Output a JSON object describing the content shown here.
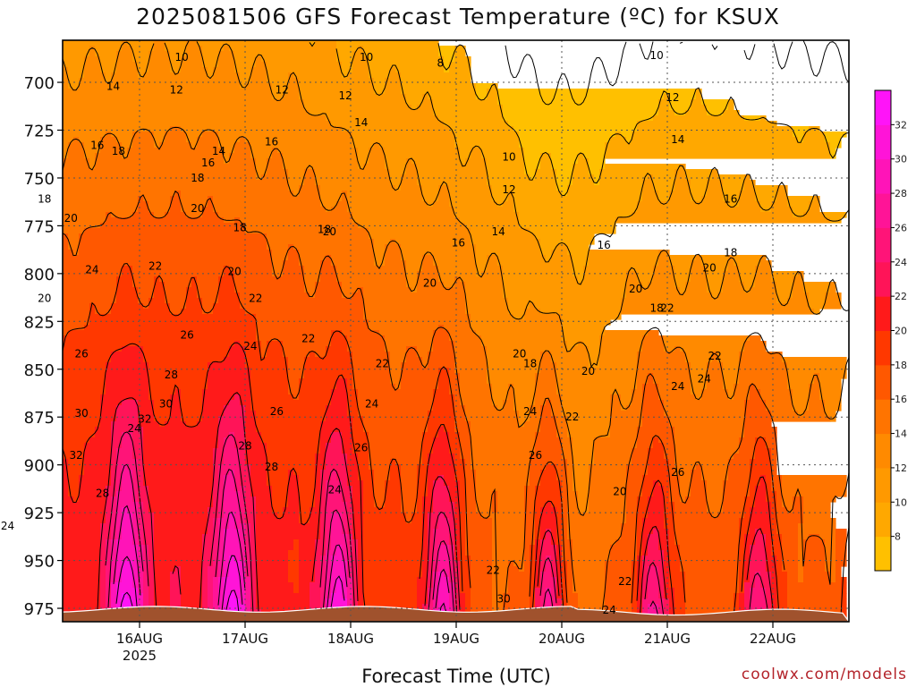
{
  "chart_data": {
    "type": "heatmap",
    "title": "2025081506 GFS Forecast Temperature (ºC) for KSUX",
    "xlabel": "Forecast Time (UTC)",
    "ylabel": "",
    "x_ticks": [
      "16AUG",
      "17AUG",
      "18AUG",
      "19AUG",
      "20AUG",
      "21AUG",
      "22AUG"
    ],
    "x_tick_sub": "2025",
    "y_ticks": [
      700,
      725,
      750,
      775,
      800,
      825,
      850,
      875,
      900,
      925,
      950,
      975
    ],
    "ylim": [
      982,
      678
    ],
    "colorbar": {
      "levels": [
        6,
        8,
        10,
        12,
        14,
        16,
        18,
        20,
        22,
        24,
        26,
        28,
        30,
        32,
        34
      ],
      "tick_labels": [
        8,
        10,
        12,
        14,
        16,
        18,
        20,
        22,
        24,
        26,
        28,
        30,
        32
      ],
      "colors": [
        "#ffc000",
        "#ffa800",
        "#ff9900",
        "#ff8a00",
        "#ff7400",
        "#ff5800",
        "#ff3800",
        "#ff1a1a",
        "#ff1458",
        "#ff1478",
        "#ff1497",
        "#ff14b8",
        "#ff14d8",
        "#ff14f8"
      ]
    },
    "contour_labels": [
      {
        "t": "10",
        "x": 16.4,
        "y": 687
      },
      {
        "t": "10",
        "x": 18.15,
        "y": 687
      },
      {
        "t": "8",
        "x": 18.85,
        "y": 690
      },
      {
        "t": "10",
        "x": 20.9,
        "y": 686
      },
      {
        "t": "14",
        "x": 15.75,
        "y": 702
      },
      {
        "t": "12",
        "x": 16.35,
        "y": 704
      },
      {
        "t": "12",
        "x": 17.35,
        "y": 704
      },
      {
        "t": "12",
        "x": 17.95,
        "y": 707
      },
      {
        "t": "12",
        "x": 21.05,
        "y": 708
      },
      {
        "t": "14",
        "x": 18.1,
        "y": 721
      },
      {
        "t": "16",
        "x": 15.6,
        "y": 733
      },
      {
        "t": "18",
        "x": 15.8,
        "y": 736
      },
      {
        "t": "14",
        "x": 16.75,
        "y": 736
      },
      {
        "t": "16",
        "x": 16.65,
        "y": 742
      },
      {
        "t": "16",
        "x": 17.25,
        "y": 731
      },
      {
        "t": "14",
        "x": 21.1,
        "y": 730
      },
      {
        "t": "10",
        "x": 19.5,
        "y": 739
      },
      {
        "t": "18",
        "x": 16.55,
        "y": 750
      },
      {
        "t": "12",
        "x": 19.5,
        "y": 756
      },
      {
        "t": "18",
        "x": 15.1,
        "y": 761
      },
      {
        "t": "16",
        "x": 21.6,
        "y": 761
      },
      {
        "t": "20",
        "x": 15.35,
        "y": 771
      },
      {
        "t": "20",
        "x": 16.55,
        "y": 766
      },
      {
        "t": "18",
        "x": 16.95,
        "y": 776
      },
      {
        "t": "20",
        "x": 17.8,
        "y": 778
      },
      {
        "t": "18",
        "x": 17.75,
        "y": 777
      },
      {
        "t": "14",
        "x": 19.4,
        "y": 778
      },
      {
        "t": "16",
        "x": 19.02,
        "y": 784
      },
      {
        "t": "16",
        "x": 20.4,
        "y": 785
      },
      {
        "t": "18",
        "x": 21.6,
        "y": 789
      },
      {
        "t": "24",
        "x": 15.55,
        "y": 798
      },
      {
        "t": "22",
        "x": 16.15,
        "y": 796
      },
      {
        "t": "20",
        "x": 16.9,
        "y": 799
      },
      {
        "t": "20",
        "x": 21.4,
        "y": 797
      },
      {
        "t": "20",
        "x": 18.75,
        "y": 805
      },
      {
        "t": "20",
        "x": 20.7,
        "y": 808
      },
      {
        "t": "20",
        "x": 15.1,
        "y": 813
      },
      {
        "t": "22",
        "x": 17.1,
        "y": 813
      },
      {
        "t": "18",
        "x": 20.9,
        "y": 818
      },
      {
        "t": "22",
        "x": 21.0,
        "y": 818
      },
      {
        "t": "26",
        "x": 16.45,
        "y": 832
      },
      {
        "t": "24",
        "x": 17.05,
        "y": 838
      },
      {
        "t": "22",
        "x": 17.6,
        "y": 834
      },
      {
        "t": "26",
        "x": 15.45,
        "y": 842
      },
      {
        "t": "20",
        "x": 19.6,
        "y": 842
      },
      {
        "t": "18",
        "x": 19.7,
        "y": 847
      },
      {
        "t": "22",
        "x": 18.3,
        "y": 847
      },
      {
        "t": "20",
        "x": 20.25,
        "y": 851
      },
      {
        "t": "22",
        "x": 21.45,
        "y": 843
      },
      {
        "t": "28",
        "x": 16.3,
        "y": 853
      },
      {
        "t": "24",
        "x": 21.35,
        "y": 855
      },
      {
        "t": "24",
        "x": 21.1,
        "y": 859
      },
      {
        "t": "30",
        "x": 16.25,
        "y": 868
      },
      {
        "t": "24",
        "x": 18.2,
        "y": 868
      },
      {
        "t": "26",
        "x": 17.3,
        "y": 872
      },
      {
        "t": "30",
        "x": 15.45,
        "y": 873
      },
      {
        "t": "24",
        "x": 19.7,
        "y": 872
      },
      {
        "t": "22",
        "x": 20.1,
        "y": 875
      },
      {
        "t": "32",
        "x": 16.05,
        "y": 876
      },
      {
        "t": "24",
        "x": 15.95,
        "y": 881
      },
      {
        "t": "28",
        "x": 17.0,
        "y": 890
      },
      {
        "t": "26",
        "x": 18.1,
        "y": 891
      },
      {
        "t": "26",
        "x": 19.75,
        "y": 895
      },
      {
        "t": "32",
        "x": 15.4,
        "y": 895
      },
      {
        "t": "28",
        "x": 17.25,
        "y": 901
      },
      {
        "t": "26",
        "x": 21.1,
        "y": 904
      },
      {
        "t": "24",
        "x": 17.85,
        "y": 913
      },
      {
        "t": "28",
        "x": 15.65,
        "y": 915
      },
      {
        "t": "20",
        "x": 20.55,
        "y": 914
      },
      {
        "t": "24",
        "x": 14.75,
        "y": 932
      },
      {
        "t": "22",
        "x": 19.35,
        "y": 955
      },
      {
        "t": "22",
        "x": 20.6,
        "y": 961
      },
      {
        "t": "30",
        "x": 19.45,
        "y": 970
      },
      {
        "t": "24",
        "x": 20.45,
        "y": 976
      }
    ]
  }
}
